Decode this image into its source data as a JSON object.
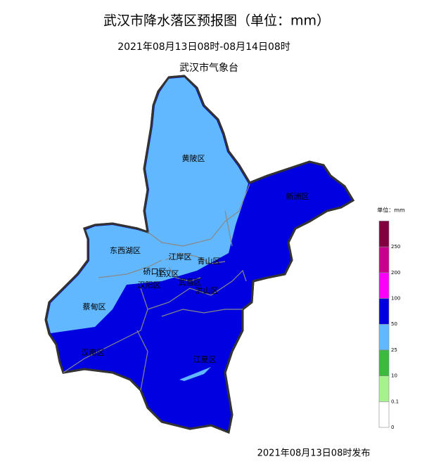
{
  "header": {
    "title": "武汉市降水落区预报图（单位：mm）",
    "period": "2021年08月13日08时-08月14日08时",
    "issuer": "武汉市气象台"
  },
  "districts": [
    "黄陂区",
    "新洲区",
    "东西湖区",
    "江岸区",
    "青山区",
    "硚口区",
    "江汉区",
    "汉阳区",
    "武昌区",
    "洪山区",
    "蔡甸区",
    "汉南区",
    "江夏区"
  ],
  "legend": {
    "unit": "单位：mm",
    "colors": [
      "#ffffff",
      "#a6f28f",
      "#3dba3d",
      "#61b8ff",
      "#0000e1",
      "#fa00fa",
      "#c8008c",
      "#800040"
    ],
    "labels": [
      "0",
      "0.1",
      "10",
      "25",
      "50",
      "100",
      "200",
      "250"
    ]
  },
  "footer": "2021年08月13日08时发布"
}
